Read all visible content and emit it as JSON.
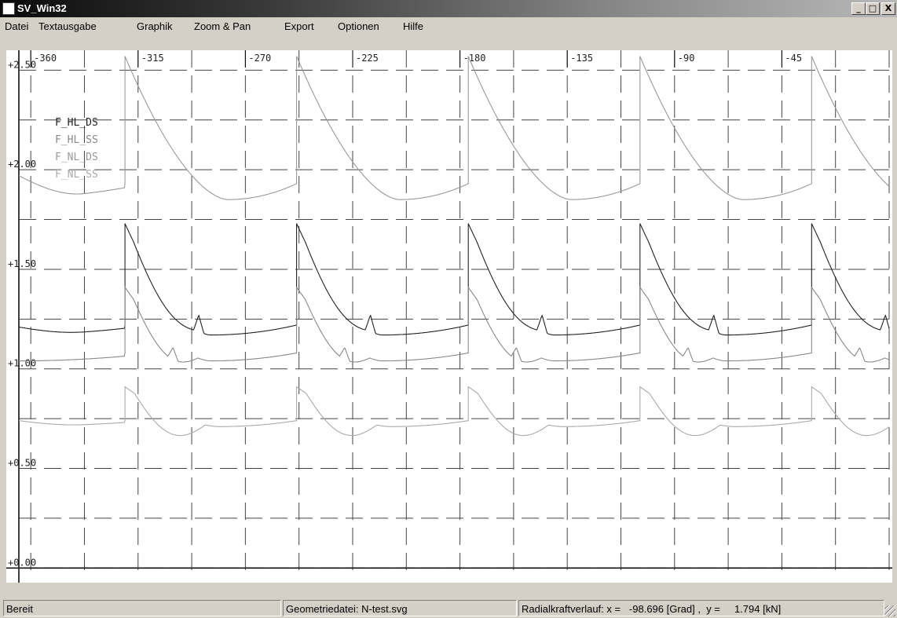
{
  "window": {
    "title": "SV_Win32"
  },
  "title_buttons": {
    "minimize": "_",
    "maximize": "□",
    "close": "X"
  },
  "menu": [
    "Datei",
    "Textausgabe",
    "Graphik",
    "Zoom & Pan",
    "Export",
    "Optionen",
    "Hilfe"
  ],
  "status": {
    "ready": "Bereit",
    "geometry": "Geometriedatei: N-test.svg",
    "readout": "Radialkraftverlauf: x =   -98.696 [Grad] ,  y =     1.794 [kN]"
  },
  "chart_data": {
    "type": "line",
    "x_ticks": [
      "-360",
      "-315",
      "-270",
      "-225",
      "-180",
      "-135",
      "-90",
      "-45"
    ],
    "y_ticks": [
      "+2.50",
      "+2.00",
      "+1.50",
      "+1.00",
      "+0.50",
      "+0.00"
    ],
    "xlim": [
      -365,
      0
    ],
    "ylim": [
      -0.05,
      2.6
    ],
    "grid": true,
    "legend_placement": "top-left",
    "series": [
      {
        "name": "F_HL_DS",
        "color": "#222222",
        "period": 72,
        "jump_x": -320.5,
        "base": 1.21,
        "peak": 1.73,
        "min": 1.17,
        "min_at": 0.5,
        "late": 1.22,
        "decay": 0.05,
        "bump": 0.08,
        "bump_at": 0.43
      },
      {
        "name": "F_HL_SS",
        "color": "#888888",
        "period": 72,
        "jump_x": -320.5,
        "base": 1.04,
        "peak": 1.41,
        "min": 1.04,
        "min_at": 0.5,
        "late": 1.08,
        "decay": 0.09,
        "bump": 0.06,
        "bump_at": 0.28
      },
      {
        "name": "F_NL_DS",
        "color": "#999999",
        "period": 72,
        "jump_x": -320.5,
        "base": 1.97,
        "peak": 2.57,
        "min": 1.85,
        "min_at": 0.6,
        "late": 1.93,
        "decay": 0.0,
        "bump": 0.0,
        "bump_at": 0.5
      },
      {
        "name": "F_NL_SS",
        "color": "#aaaaaa",
        "period": 72,
        "jump_x": -320.5,
        "base": 0.74,
        "peak": 0.91,
        "min": 0.71,
        "min_at": 0.55,
        "late": 0.74,
        "decay": 0.1,
        "bump": 0.0,
        "bump_at": 0.5
      }
    ]
  }
}
